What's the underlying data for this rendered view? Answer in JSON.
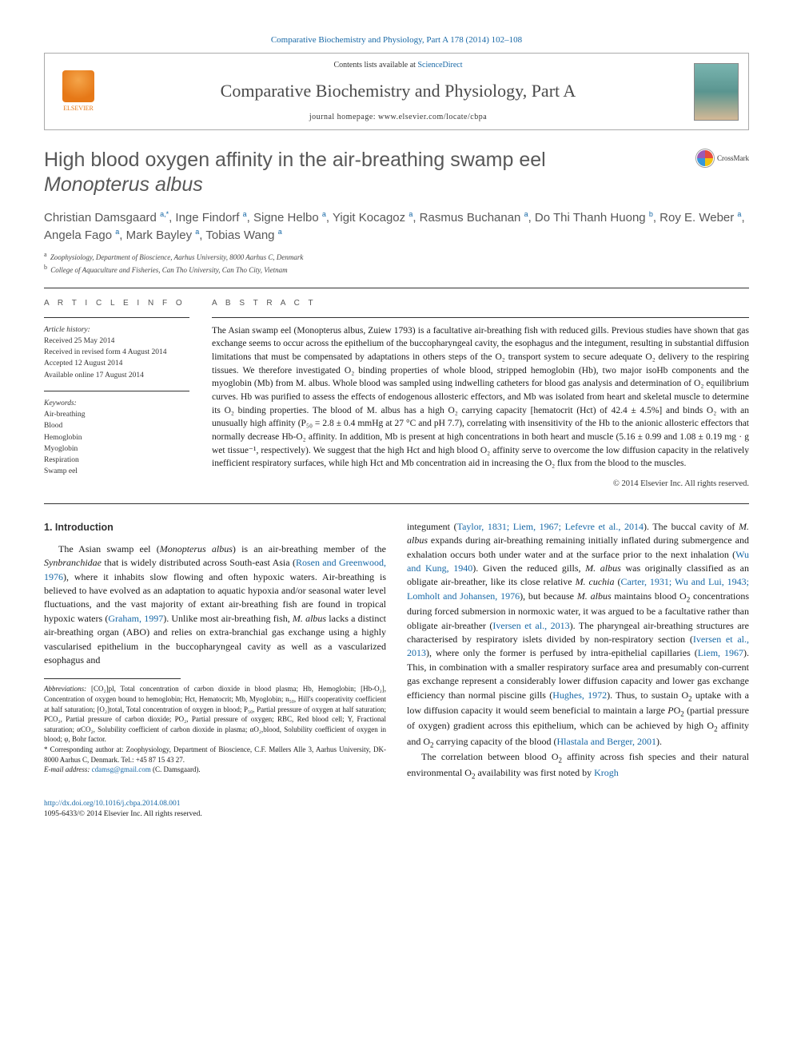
{
  "colors": {
    "link": "#1768a6",
    "text": "#1a1a1a",
    "heading_muted": "#585858",
    "rule": "#333333",
    "elsevier_orange": "#e67817"
  },
  "typography": {
    "body_font": "Georgia, serif",
    "sans_font": "Helvetica Neue, Arial, sans-serif",
    "title_size_pt": 25,
    "authors_size_pt": 15,
    "body_size_pt": 12,
    "abstract_size_pt": 11.5,
    "info_size_pt": 9.5
  },
  "top_link": "Comparative Biochemistry and Physiology, Part A 178 (2014) 102–108",
  "header": {
    "contents_prefix": "Contents lists available at ",
    "contents_link": "ScienceDirect",
    "journal": "Comparative Biochemistry and Physiology, Part A",
    "homepage_prefix": "journal homepage: ",
    "homepage": "www.elsevier.com/locate/cbpa",
    "publisher_label": "ELSEVIER"
  },
  "crossmark": "CrossMark",
  "title_plain": "High blood oxygen affinity in the air-breathing swamp eel",
  "title_species": "Monopterus albus",
  "authors_html": "Christian Damsgaard <sup>a,*</sup>, Inge Findorf <sup>a</sup>, Signe Helbo <sup>a</sup>, Yigit Kocagoz <sup>a</sup>, Rasmus Buchanan <sup>a</sup>, Do Thi Thanh Huong <sup>b</sup>, Roy E. Weber <sup>a</sup>, Angela Fago <sup>a</sup>, Mark Bayley <sup>a</sup>, Tobias Wang <sup>a</sup>",
  "affiliations": [
    {
      "sup": "a",
      "text": "Zoophysiology, Department of Bioscience, Aarhus University, 8000 Aarhus C, Denmark"
    },
    {
      "sup": "b",
      "text": "College of Aquaculture and Fisheries, Can Tho University, Can Tho City, Vietnam"
    }
  ],
  "article_info_head": "A R T I C L E   I N F O",
  "abstract_head": "A B S T R A C T",
  "history_label": "Article history:",
  "history": [
    "Received 25 May 2014",
    "Received in revised form 4 August 2014",
    "Accepted 12 August 2014",
    "Available online 17 August 2014"
  ],
  "keywords_label": "Keywords:",
  "keywords": [
    "Air-breathing",
    "Blood",
    "Hemoglobin",
    "Myoglobin",
    "Respiration",
    "Swamp eel"
  ],
  "abstract": "The Asian swamp eel (Monopterus albus, Zuiew 1793) is a facultative air-breathing fish with reduced gills. Previous studies have shown that gas exchange seems to occur across the epithelium of the buccopharyngeal cavity, the esophagus and the integument, resulting in substantial diffusion limitations that must be compensated by adaptations in others steps of the O₂ transport system to secure adequate O₂ delivery to the respiring tissues. We therefore investigated O₂ binding properties of whole blood, stripped hemoglobin (Hb), two major isoHb components and the myoglobin (Mb) from M. albus. Whole blood was sampled using indwelling catheters for blood gas analysis and determination of O₂ equilibrium curves. Hb was purified to assess the effects of endogenous allosteric effectors, and Mb was isolated from heart and skeletal muscle to determine its O₂ binding properties. The blood of M. albus has a high O₂ carrying capacity [hematocrit (Hct) of 42.4 ± 4.5%] and binds O₂ with an unusually high affinity (P₅₀ = 2.8 ± 0.4 mmHg at 27 °C and pH 7.7), correlating with insensitivity of the Hb to the anionic allosteric effectors that normally decrease Hb-O₂ affinity. In addition, Mb is present at high concentrations in both heart and muscle (5.16 ± 0.99 and 1.08 ± 0.19 mg · g wet tissue⁻¹, respectively). We suggest that the high Hct and high blood O₂ affinity serve to overcome the low diffusion capacity in the relatively inefficient respiratory surfaces, while high Hct and Mb concentration aid in increasing the O₂ flux from the blood to the muscles.",
  "abstract_copyright": "© 2014 Elsevier Inc. All rights reserved.",
  "intro_heading": "1. Introduction",
  "intro_p1_html": "The Asian swamp eel (<em>Monopterus albus</em>) is an air-breathing member of the <em>Synbranchidae</em> that is widely distributed across South-east Asia (<a>Rosen and Greenwood, 1976</a>), where it inhabits slow flowing and often hypoxic waters. Air-breathing is believed to have evolved as an adaptation to aquatic hypoxia and/or seasonal water level fluctuations, and the vast majority of extant air-breathing fish are found in tropical hypoxic waters (<a>Graham, 1997</a>). Unlike most air-breathing fish, <em>M. albus</em> lacks a distinct air-breathing organ (ABO) and relies on extra-branchial gas exchange using a highly vascularised epithelium in the buccopharyngeal cavity as well as a vascularized esophagus and",
  "intro_p1b_html": "integument (<a>Taylor, 1831; Liem, 1967; Lefevre et al., 2014</a>). The buccal cavity of <em>M. albus</em> expands during air-breathing remaining initially inflated during submergence and exhalation occurs both under water and at the surface prior to the next inhalation (<a>Wu and Kung, 1940</a>). Given the reduced gills, <em>M. albus</em> was originally classified as an obligate air-breather, like its close relative <em>M. cuchia</em> (<a>Carter, 1931; Wu and Lui, 1943; Lomholt and Johansen, 1976</a>), but because <em>M. albus</em> maintains blood O<sub>2</sub> concentrations during forced submersion in normoxic water, it was argued to be a facultative rather than obligate air-breather (<a>Iversen et al., 2013</a>). The pharyngeal air-breathing structures are characterised by respiratory islets divided by non-respiratory section (<a>Iversen et al., 2013</a>), where only the former is perfused by intra-epithelial capillaries (<a>Liem, 1967</a>). This, in combination with a smaller respiratory surface area and presumably con-current gas exchange represent a considerably lower diffusion capacity and lower gas exchange efficiency than normal piscine gills (<a>Hughes, 1972</a>). Thus, to sustain O<sub>2</sub> uptake with a low diffusion capacity it would seem beneficial to maintain a large <em>P</em>O<sub>2</sub> (partial pressure of oxygen) gradient across this epithelium, which can be achieved by high O<sub>2</sub> affinity and O<sub>2</sub> carrying capacity of the blood (<a>Hlastala and Berger, 2001</a>).",
  "intro_p2_html": "The correlation between blood O<sub>2</sub> affinity across fish species and their natural environmental O<sub>2</sub> availability was first noted by <a>Krogh</a>",
  "abbrev_label": "Abbreviations:",
  "abbrev_text": " [CO₂]pl, Total concentration of carbon dioxide in blood plasma; Hb, Hemoglobin; [Hb-O₂], Concentration of oxygen bound to hemoglobin; Hct, Hematocrit; Mb, Myoglobin; n₅₀, Hill's cooperativity coefficient at half saturation; [O₂]total, Total concentration of oxygen in blood; P₅₀, Partial pressure of oxygen at half saturation; PCO₂, Partial pressure of carbon dioxide; PO₂, Partial pressure of oxygen; RBC, Red blood cell; Y, Fractional saturation; αCO₂, Solubility coefficient of carbon dioxide in plasma; αO₂,blood, Solubility coefficient of oxygen in blood; φ, Bohr factor.",
  "corr_text": "* Corresponding author at: Zoophysiology, Department of Bioscience, C.F. Møllers Alle 3, Aarhus University, DK-8000 Aarhus C, Denmark. Tel.: +45 87 15 43 27.",
  "email_label": "E-mail address: ",
  "email": "cdamsg@gmail.com",
  "email_suffix": " (C. Damsgaard).",
  "doi": "http://dx.doi.org/10.1016/j.cbpa.2014.08.001",
  "issn_line": "1095-6433/© 2014 Elsevier Inc. All rights reserved."
}
